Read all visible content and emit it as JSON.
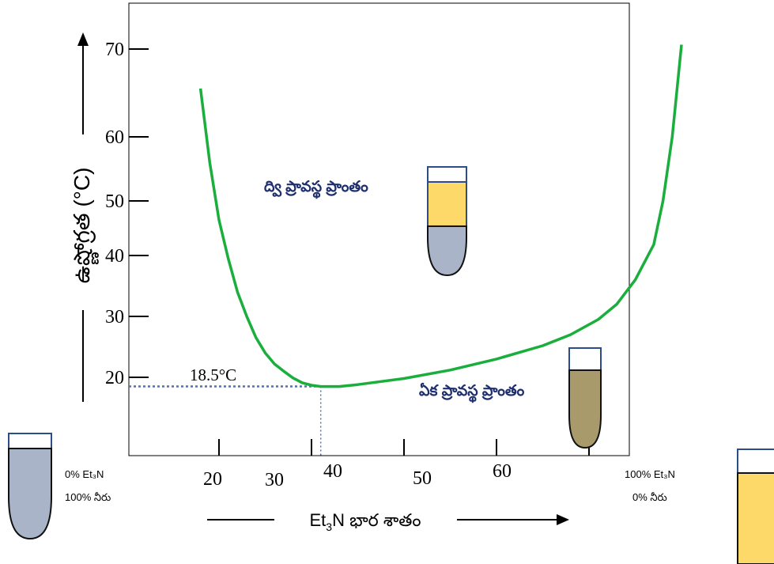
{
  "chart_data": {
    "type": "line",
    "title": "",
    "y_axis_label": "ఉష్ణోగ్రత (°C)",
    "x_axis_label_prefix": "Et",
    "x_axis_label_subscript": "3",
    "x_axis_label_suffix": "N భార శాతం",
    "y_ticks": [
      "20",
      "30",
      "40",
      "50",
      "60",
      "70"
    ],
    "x_ticks": [
      "20",
      "30",
      "40",
      "50",
      "60"
    ],
    "minimum_annotation": "18.5°C",
    "minimum": {
      "x": 31,
      "y": 18.5
    },
    "series": [
      {
        "color": "#1aae3c",
        "points": [
          [
            18,
            65.5
          ],
          [
            19,
            56
          ],
          [
            20,
            46.5
          ],
          [
            21,
            39.5
          ],
          [
            22,
            34
          ],
          [
            23,
            30
          ],
          [
            24,
            26.5
          ],
          [
            25,
            24
          ],
          [
            26,
            22.2
          ],
          [
            27,
            21
          ],
          [
            28,
            19.9
          ],
          [
            29,
            19.1
          ],
          [
            30,
            18.7
          ],
          [
            31,
            18.5
          ],
          [
            32,
            18.5
          ],
          [
            33,
            18.5
          ],
          [
            35,
            18.8
          ],
          [
            40,
            19.8
          ],
          [
            45,
            21.2
          ],
          [
            50,
            23
          ],
          [
            55,
            25.2
          ],
          [
            58,
            27
          ],
          [
            61,
            29.5
          ],
          [
            63,
            32
          ],
          [
            65,
            36
          ],
          [
            67,
            42
          ],
          [
            68,
            50
          ],
          [
            69,
            60
          ],
          [
            70,
            70.5
          ]
        ]
      }
    ]
  },
  "labels": {
    "two_phase": "ద్వి ప్రావస్థ ప్రాంతం",
    "one_phase": "ఏక ప్రావస్థ ప్రాంతం",
    "left_line1": "0% Et₃N",
    "left_line2": "100% నీరు",
    "right_line1": "100% Et₃N",
    "right_line2": "0% నీరు"
  },
  "colors": {
    "curve": "#1aae3c",
    "water": "#a9b4c8",
    "amine": "#fcd968",
    "mixed": "#a99a6b",
    "outline": "#2d4c8c",
    "guide": "#4a73c0",
    "region_text": "#1e2f6e"
  }
}
